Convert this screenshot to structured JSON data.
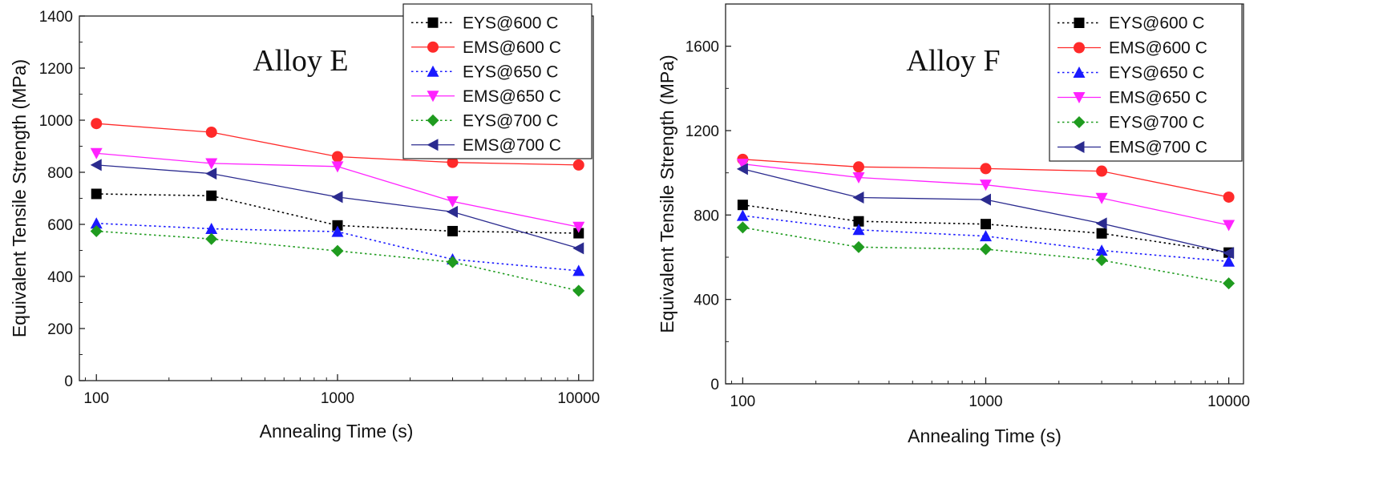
{
  "chart_data": [
    {
      "type": "line",
      "title": "Alloy E",
      "xlabel": "Annealing Time (s)",
      "ylabel": "Equivalent Tensile Strength (MPa)",
      "x_scale": "log",
      "xlim": [
        85,
        11500
      ],
      "ylim": [
        0,
        1400
      ],
      "x_ticks": [
        100,
        1000,
        10000
      ],
      "y_ticks": [
        0,
        200,
        400,
        600,
        800,
        1000,
        1200,
        1400
      ],
      "legend_position": "top-right",
      "x": [
        100,
        300,
        1000,
        3000,
        10000
      ],
      "series": [
        {
          "name": "EYS@600 C",
          "color": "#000000",
          "marker": "square",
          "line": "dotted",
          "values": [
            717,
            710,
            596,
            574,
            566
          ]
        },
        {
          "name": "EMS@600 C",
          "color": "#ff2a2a",
          "marker": "circle",
          "line": "solid",
          "values": [
            987,
            954,
            860,
            838,
            828
          ]
        },
        {
          "name": "EYS@650 C",
          "color": "#1a1aff",
          "marker": "triangle-up",
          "line": "dotted",
          "values": [
            604,
            583,
            572,
            466,
            422
          ]
        },
        {
          "name": "EMS@650 C",
          "color": "#ff22ff",
          "marker": "triangle-down",
          "line": "solid",
          "values": [
            873,
            834,
            822,
            688,
            590
          ]
        },
        {
          "name": "EYS@700 C",
          "color": "#1f9b1f",
          "marker": "diamond",
          "line": "dotted",
          "values": [
            574,
            544,
            498,
            455,
            345
          ]
        },
        {
          "name": "EMS@700 C",
          "color": "#2b2b8f",
          "marker": "triangle-left",
          "line": "solid",
          "values": [
            828,
            795,
            705,
            648,
            508
          ]
        }
      ]
    },
    {
      "type": "line",
      "title": "Alloy F",
      "xlabel": "Annealing Time (s)",
      "ylabel": "Equivalent Tensile Strength (MPa)",
      "x_scale": "log",
      "xlim": [
        85,
        11500
      ],
      "ylim": [
        0,
        1800
      ],
      "x_ticks": [
        100,
        1000,
        10000
      ],
      "y_ticks": [
        0,
        400,
        800,
        1200,
        1600
      ],
      "legend_position": "top-right",
      "x": [
        100,
        300,
        1000,
        3000,
        10000
      ],
      "series": [
        {
          "name": "EYS@600 C",
          "color": "#000000",
          "marker": "square",
          "line": "dotted",
          "values": [
            848,
            770,
            757,
            713,
            622
          ]
        },
        {
          "name": "EMS@600 C",
          "color": "#ff2a2a",
          "marker": "circle",
          "line": "solid",
          "values": [
            1064,
            1028,
            1020,
            1008,
            885
          ]
        },
        {
          "name": "EYS@650 C",
          "color": "#1a1aff",
          "marker": "triangle-up",
          "line": "dotted",
          "values": [
            797,
            730,
            700,
            632,
            580
          ]
        },
        {
          "name": "EMS@650 C",
          "color": "#ff22ff",
          "marker": "triangle-down",
          "line": "solid",
          "values": [
            1042,
            978,
            943,
            880,
            752
          ]
        },
        {
          "name": "EYS@700 C",
          "color": "#1f9b1f",
          "marker": "diamond",
          "line": "dotted",
          "values": [
            741,
            648,
            638,
            586,
            476
          ]
        },
        {
          "name": "EMS@700 C",
          "color": "#2b2b8f",
          "marker": "triangle-left",
          "line": "solid",
          "values": [
            1018,
            883,
            873,
            760,
            620
          ]
        }
      ]
    }
  ]
}
